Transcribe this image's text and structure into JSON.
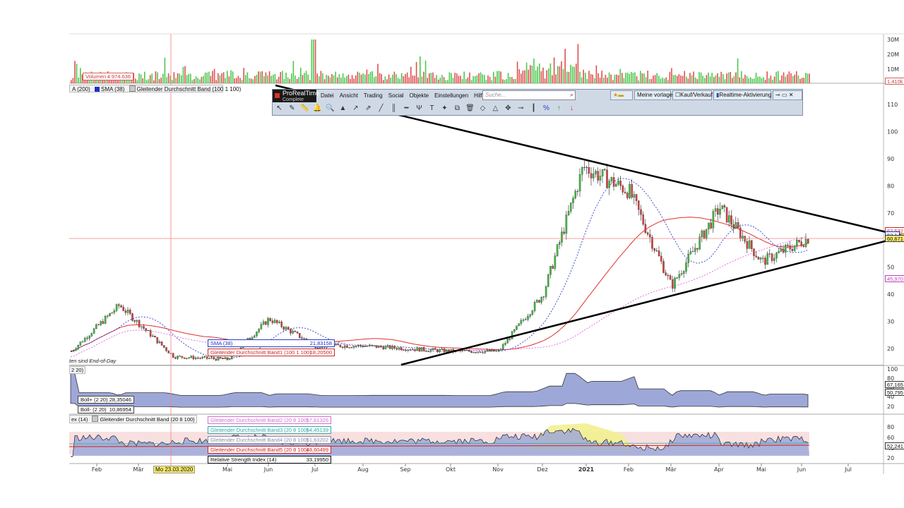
{
  "volume_panel": {
    "cursor_label": "Volumen",
    "cursor_value": "4.974.636",
    "y_ticks": [
      "30M",
      "20M",
      "10M"
    ],
    "last_value": "1.410k"
  },
  "price_legend": {
    "items": [
      {
        "label": "A (200)",
        "color": "#e08ad8"
      },
      {
        "label": "SMA (38)",
        "color": "#1f2fd0"
      },
      {
        "label": "Gleitender Durchschnitt Band (100 1 100)",
        "color": "#c8c8c8"
      }
    ]
  },
  "toolbar": {
    "logo_line1": "ProRealTime",
    "logo_line2": "Complete",
    "menu": [
      "Datei",
      "Ansicht",
      "Trading",
      "Social",
      "Objekte",
      "Einstellungen",
      "Hilfe"
    ],
    "search_placeholder": "Suche...",
    "meine_vorlage": "Meine vorlage",
    "kauf_verkauf": "Kauf/Verkauf",
    "realtime": "Realtime-Aktivierung",
    "tool_icons": [
      "cursor-icon",
      "pencil-icon",
      "ruler-icon",
      "bell-icon",
      "zoom-icon",
      "fib-icon",
      "trend-icon",
      "multi-trend-icon",
      "line-icon",
      "channel-icon",
      "hline-icon",
      "pitchfork-icon",
      "text-icon",
      "paint-icon",
      "copy-icon",
      "trash-icon",
      "shape-icon",
      "triangle-icon",
      "move-icon",
      "chain-icon",
      "vertical-icon",
      "percent-icon",
      "up-arrow-icon",
      "down-arrow-icon"
    ]
  },
  "price_panel": {
    "y_ticks": [
      110,
      100,
      90,
      80,
      70,
      60,
      50,
      40,
      30,
      20
    ],
    "end_of_day_note": "ten sind End-of-Day",
    "last_tags": [
      {
        "text": "62,532",
        "color": "#c62828"
      },
      {
        "text": "62,1",
        "color": "#1f2fd0"
      },
      {
        "text": "60,671",
        "color": "#333333"
      },
      {
        "text": "45,970",
        "color": "#c040c0"
      }
    ],
    "tooltip_sma_label": "SMA (38)",
    "tooltip_sma_value": "21,83158",
    "tooltip_band_label": "Gleitender Durchschnitt Band1 (100 1 100)",
    "tooltip_band_value": "18,20500"
  },
  "boll_panel": {
    "legend": "2 20)",
    "y_ticks": [
      "100",
      "80",
      "60",
      "40",
      "20"
    ],
    "right_tags": [
      "67,165",
      "50,795"
    ],
    "tip_upper_label": "Boll+ (2 20)",
    "tip_upper_value": "28,35046",
    "tip_lower_label": "Boll- (2 20)",
    "tip_lower_value": "10,86954"
  },
  "rsi_panel": {
    "legend_a": "ex (14)",
    "legend_b": "Gleitender Durchschnitt Band (20 8 100)",
    "y_ticks": [
      "80",
      "60",
      "40",
      "20"
    ],
    "right_tag": "52,241",
    "tips": [
      {
        "label": "Gleitender Durchschnitt Band2 (20 8 100)",
        "value": "57,61326",
        "color": "#d070d0"
      },
      {
        "label": "Gleitender Durchschnitt Band3 (20 8 100)",
        "value": "54,45139",
        "color": "#30a8a8"
      },
      {
        "label": "Gleitender Durchschnitt Band4 (20 8 100)",
        "value": "51,63202",
        "color": "#8a8aa8"
      },
      {
        "label": "Gleitender Durchschnitt Band5 (20 8 100)",
        "value": "48,60499",
        "color": "#d02020"
      },
      {
        "label": "Relative Strength Index (14)",
        "value": "33,19950",
        "color": "#111111"
      }
    ]
  },
  "time_axis": {
    "labels": [
      "Feb",
      "Mär",
      "Mai",
      "Jun",
      "Jul",
      "Aug",
      "Sep",
      "Okt",
      "Nov",
      "Dez",
      "2021",
      "Feb",
      "Mär",
      "Apr",
      "Mai",
      "Jun",
      "Jul"
    ],
    "cursor_date": "Mo 23.03.2020"
  },
  "chart_data": {
    "type": "candlestick",
    "y_axis": {
      "min": 15,
      "max": 115,
      "ticks": [
        20,
        30,
        40,
        50,
        60,
        70,
        80,
        90,
        100,
        110
      ]
    },
    "price_path": [
      [
        "Feb 2020",
        19
      ],
      [
        "Mär 2020",
        36
      ],
      [
        "Apr 2020",
        17
      ],
      [
        "Mai 2020",
        16
      ],
      [
        "Jun 2020",
        31
      ],
      [
        "Jul 2020",
        21
      ],
      [
        "Aug 2020",
        21
      ],
      [
        "Sep 2020",
        20
      ],
      [
        "Okt 2020",
        19
      ],
      [
        "Nov 2020",
        19
      ],
      [
        "Dez 2020",
        40
      ],
      [
        "2021",
        87
      ],
      [
        "Feb 2021",
        78
      ],
      [
        "Mär 2021",
        43
      ],
      [
        "Apr 2021",
        72
      ],
      [
        "Mai 2021",
        52
      ],
      [
        "Jun 2021",
        61
      ]
    ],
    "annotations": [
      "symmetrical triangle trendlines"
    ]
  }
}
